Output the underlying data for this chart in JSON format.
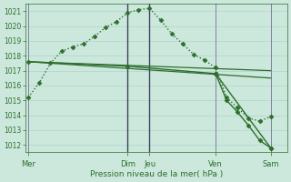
{
  "background_color": "#cce8dc",
  "plot_bg_color": "#cce8dc",
  "grid_color": "#b0d4c8",
  "line_color": "#2d6e2d",
  "marker_color": "#2d6e2d",
  "ylim": [
    1011.5,
    1021.5
  ],
  "yticks": [
    1012,
    1013,
    1014,
    1015,
    1016,
    1017,
    1018,
    1019,
    1020,
    1021
  ],
  "xlabel": "Pression niveau de la mer( hPa )",
  "xlabel_color": "#2d6e2d",
  "tick_color": "#2d6e2d",
  "day_labels": [
    "Mer",
    "Dim",
    "Jeu",
    "Ven",
    "Sam"
  ],
  "day_positions": [
    0,
    9,
    11,
    17,
    22
  ],
  "xlim": [
    -0.3,
    23.5
  ],
  "series": [
    {
      "x": [
        0,
        1,
        2,
        3,
        4,
        5,
        6,
        7,
        8,
        9,
        10,
        11,
        12,
        13,
        14,
        15,
        16,
        17,
        18,
        19,
        20,
        21,
        22
      ],
      "y": [
        1015.2,
        1016.2,
        1017.5,
        1018.3,
        1018.6,
        1018.8,
        1019.3,
        1019.9,
        1020.3,
        1020.9,
        1021.1,
        1021.2,
        1020.4,
        1019.5,
        1018.8,
        1018.1,
        1017.7,
        1017.2,
        1015.2,
        1014.5,
        1013.8,
        1013.6,
        1013.9
      ],
      "linestyle": "dotted",
      "marker": "D",
      "markersize": 2.5,
      "linewidth": 1.0
    },
    {
      "x": [
        0,
        22
      ],
      "y": [
        1017.6,
        1017.0
      ],
      "linestyle": "solid",
      "marker": null,
      "markersize": 0,
      "linewidth": 0.9
    },
    {
      "x": [
        0,
        22
      ],
      "y": [
        1017.6,
        1016.5
      ],
      "linestyle": "solid",
      "marker": null,
      "markersize": 0,
      "linewidth": 0.9
    },
    {
      "x": [
        0,
        9,
        17,
        22
      ],
      "y": [
        1017.6,
        1017.3,
        1016.8,
        1011.8
      ],
      "linestyle": "solid",
      "marker": "D",
      "markersize": 2.5,
      "linewidth": 1.0
    },
    {
      "x": [
        17,
        18,
        19,
        20,
        21,
        22
      ],
      "y": [
        1016.8,
        1015.0,
        1014.2,
        1013.3,
        1012.3,
        1011.8
      ],
      "linestyle": "solid",
      "marker": "D",
      "markersize": 2.5,
      "linewidth": 1.0
    }
  ],
  "vlines": [
    {
      "x": 0,
      "color": "#8080a0",
      "lw": 0.7
    },
    {
      "x": 9,
      "color": "#404060",
      "lw": 1.0
    },
    {
      "x": 11,
      "color": "#404060",
      "lw": 1.0
    },
    {
      "x": 17,
      "color": "#8080a0",
      "lw": 0.7
    },
    {
      "x": 22,
      "color": "#8080a0",
      "lw": 0.7
    }
  ],
  "figsize": [
    3.2,
    2.0
  ],
  "dpi": 100
}
